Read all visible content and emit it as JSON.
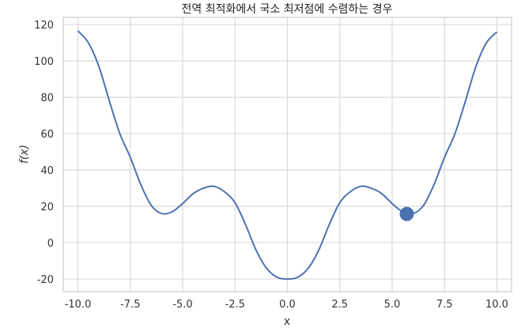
{
  "chart_data": {
    "type": "line",
    "title": "전역 최적화에서 국소 최저점에 수렴하는 경우",
    "xlabel": "x",
    "ylabel": "f(x)",
    "xlim": [
      -10.7,
      10.7
    ],
    "ylim": [
      -27,
      124
    ],
    "x_ticks": [
      -10.0,
      -7.5,
      -5.0,
      -2.5,
      0.0,
      2.5,
      5.0,
      7.5,
      10.0
    ],
    "x_tick_labels": [
      "-10.0",
      "-7.5",
      "-5.0",
      "-2.5",
      "0.0",
      "2.5",
      "5.0",
      "7.5",
      "10.0"
    ],
    "y_ticks": [
      -20,
      0,
      20,
      40,
      60,
      80,
      100,
      120
    ],
    "y_tick_labels": [
      "-20",
      "0",
      "20",
      "40",
      "60",
      "80",
      "100",
      "120"
    ],
    "grid": true,
    "series": [
      {
        "color": "#4c72b0",
        "x": [
          -10.0,
          -9.5,
          -9.0,
          -8.5,
          -8.0,
          -7.5,
          -7.0,
          -6.5,
          -6.0,
          -5.5,
          -5.0,
          -4.5,
          -4.0,
          -3.5,
          -3.0,
          -2.5,
          -2.0,
          -1.5,
          -1.0,
          -0.5,
          0.0,
          0.5,
          1.0,
          1.5,
          2.0,
          2.5,
          3.0,
          3.5,
          4.0,
          4.5,
          5.0,
          5.5,
          6.0,
          6.5,
          7.0,
          7.5,
          8.0,
          8.5,
          9.0,
          9.5,
          10.0
        ],
        "y": [
          116.6,
          110.0,
          97.0,
          78.0,
          60.0,
          47.0,
          32.0,
          20.5,
          16.0,
          17.0,
          21.5,
          27.0,
          30.0,
          31.0,
          28.0,
          22.0,
          10.0,
          -4.0,
          -14.0,
          -19.0,
          -20.0,
          -19.0,
          -14.0,
          -4.0,
          10.0,
          22.0,
          28.0,
          31.0,
          30.0,
          27.0,
          21.5,
          17.0,
          16.0,
          20.5,
          32.0,
          47.0,
          60.0,
          78.0,
          97.0,
          110.0,
          116.0
        ]
      }
    ],
    "highlight_point": {
      "x": 5.7,
      "y": 15.8,
      "color": "#4c72b0"
    }
  }
}
